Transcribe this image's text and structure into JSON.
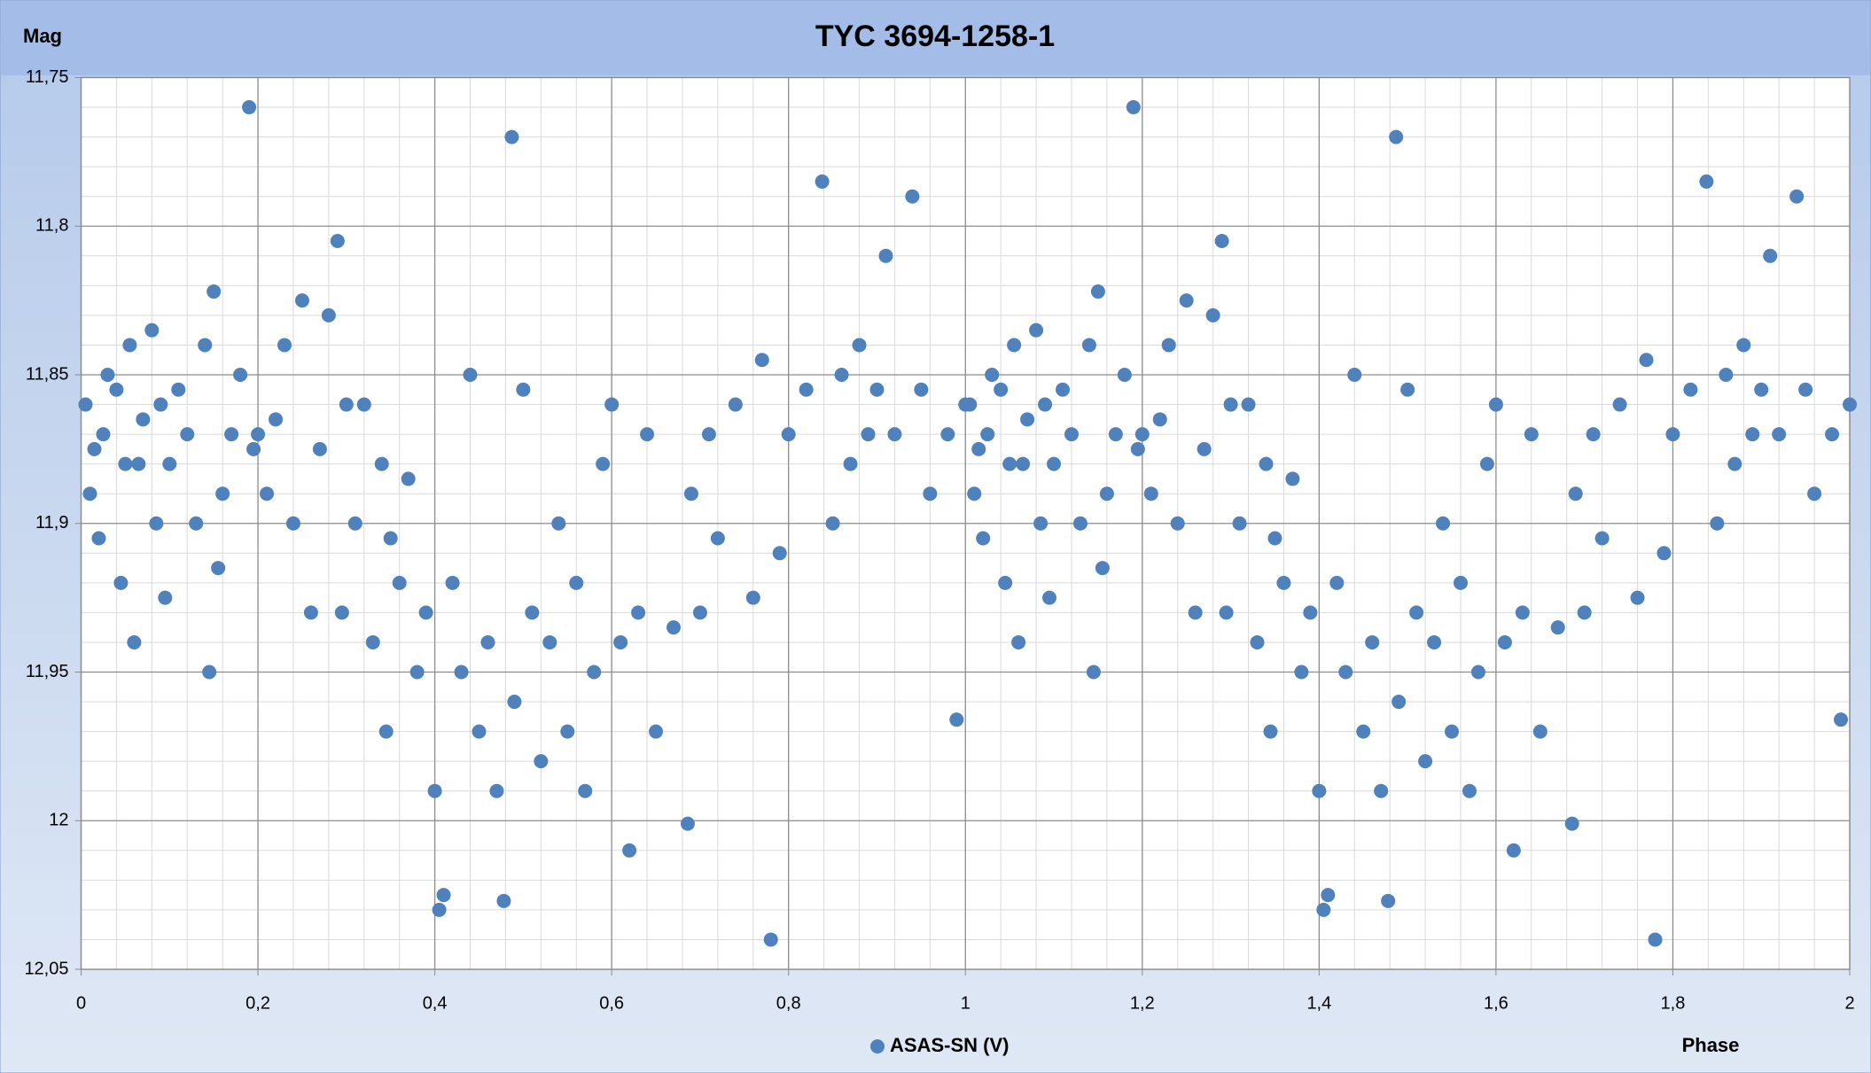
{
  "chart_data": {
    "type": "scatter",
    "title": "TYC 3694-1258-1",
    "ylabel": "Mag",
    "xlabel": "Phase",
    "xlim": [
      0,
      2
    ],
    "xticks": [
      0,
      {
        "value": 0.2,
        "label": "0,2"
      },
      {
        "value": 0.4,
        "label": "0,4"
      },
      {
        "value": 0.6,
        "label": "0,6"
      },
      {
        "value": 0.8,
        "label": "0,8"
      },
      1,
      {
        "value": 1.2,
        "label": "1,2"
      },
      {
        "value": 1.4,
        "label": "1,4"
      },
      {
        "value": 1.6,
        "label": "1,6"
      },
      {
        "value": 1.8,
        "label": "1,8"
      },
      2
    ],
    "ylim": [
      11.75,
      12.05
    ],
    "yinverted": true,
    "yticks": [
      {
        "value": 11.75,
        "label": "11,75"
      },
      {
        "value": 11.8,
        "label": "11,8"
      },
      {
        "value": 11.85,
        "label": "11,85"
      },
      {
        "value": 11.9,
        "label": "11,9"
      },
      {
        "value": 11.95,
        "label": "11,95"
      },
      12,
      {
        "value": 12.05,
        "label": "12,05"
      }
    ],
    "grid": true,
    "minor_grid": true,
    "legend": "bottom",
    "series": [
      {
        "name": "ASAS-SN (V)",
        "color": "#4f81bd",
        "x": [
          0.005,
          0.01,
          0.015,
          0.02,
          0.025,
          0.03,
          0.04,
          0.045,
          0.05,
          0.055,
          0.06,
          0.065,
          0.07,
          0.08,
          0.085,
          0.09,
          0.095,
          0.1,
          0.11,
          0.12,
          0.13,
          0.14,
          0.145,
          0.15,
          0.155,
          0.16,
          0.17,
          0.18,
          0.19,
          0.195,
          0.2,
          0.21,
          0.22,
          0.23,
          0.24,
          0.25,
          0.26,
          0.27,
          0.28,
          0.29,
          0.295,
          0.3,
          0.31,
          0.32,
          0.33,
          0.34,
          0.345,
          0.35,
          0.36,
          0.37,
          0.38,
          0.39,
          0.4,
          0.405,
          0.41,
          0.42,
          0.43,
          0.44,
          0.45,
          0.46,
          0.47,
          0.478,
          0.487,
          0.49,
          0.5,
          0.51,
          0.52,
          0.53,
          0.54,
          0.55,
          0.56,
          0.57,
          0.58,
          0.59,
          0.6,
          0.61,
          0.62,
          0.63,
          0.64,
          0.65,
          0.67,
          0.686,
          0.69,
          0.7,
          0.71,
          0.72,
          0.74,
          0.76,
          0.77,
          0.78,
          0.79,
          0.8,
          0.82,
          0.838,
          0.85,
          0.86,
          0.87,
          0.88,
          0.89,
          0.9,
          0.91,
          0.92,
          0.94,
          0.95,
          0.96,
          0.98,
          0.99,
          1.0,
          1.005,
          1.01,
          1.015,
          1.02,
          1.025,
          1.03,
          1.04,
          1.045,
          1.05,
          1.055,
          1.06,
          1.065,
          1.07,
          1.08,
          1.085,
          1.09,
          1.095,
          1.1,
          1.11,
          1.12,
          1.13,
          1.14,
          1.145,
          1.15,
          1.155,
          1.16,
          1.17,
          1.18,
          1.19,
          1.195,
          1.2,
          1.21,
          1.22,
          1.23,
          1.24,
          1.25,
          1.26,
          1.27,
          1.28,
          1.29,
          1.295,
          1.3,
          1.31,
          1.32,
          1.33,
          1.34,
          1.345,
          1.35,
          1.36,
          1.37,
          1.38,
          1.39,
          1.4,
          1.405,
          1.41,
          1.42,
          1.43,
          1.44,
          1.45,
          1.46,
          1.47,
          1.478,
          1.487,
          1.49,
          1.5,
          1.51,
          1.52,
          1.53,
          1.54,
          1.55,
          1.56,
          1.57,
          1.58,
          1.59,
          1.6,
          1.61,
          1.62,
          1.63,
          1.64,
          1.65,
          1.67,
          1.686,
          1.69,
          1.7,
          1.71,
          1.72,
          1.74,
          1.76,
          1.77,
          1.78,
          1.79,
          1.8,
          1.82,
          1.838,
          1.85,
          1.86,
          1.87,
          1.88,
          1.89,
          1.9,
          1.91,
          1.92,
          1.94,
          1.95,
          1.96,
          1.98,
          1.99,
          2.0
        ],
        "y": [
          11.86,
          11.89,
          11.875,
          11.905,
          11.87,
          11.85,
          11.855,
          11.92,
          11.88,
          11.84,
          11.94,
          11.88,
          11.865,
          11.835,
          11.9,
          11.86,
          11.925,
          11.88,
          11.855,
          11.87,
          11.9,
          11.84,
          11.95,
          11.822,
          11.915,
          11.89,
          11.87,
          11.85,
          11.76,
          11.875,
          11.87,
          11.89,
          11.865,
          11.84,
          11.9,
          11.825,
          11.93,
          11.875,
          11.83,
          11.805,
          11.93,
          11.86,
          11.9,
          11.86,
          11.94,
          11.88,
          11.97,
          11.905,
          11.92,
          11.885,
          11.95,
          11.93,
          11.99,
          12.03,
          12.025,
          11.92,
          11.95,
          11.85,
          11.97,
          11.94,
          11.99,
          12.027,
          11.77,
          11.96,
          11.855,
          11.93,
          11.98,
          11.94,
          11.9,
          11.97,
          11.92,
          11.99,
          11.95,
          11.88,
          11.86,
          11.94,
          12.01,
          11.93,
          11.87,
          11.97,
          11.935,
          12.001,
          11.89,
          11.93,
          11.87,
          11.905,
          11.86,
          11.925,
          11.845,
          12.04,
          11.91,
          11.87,
          11.855,
          11.785,
          11.9,
          11.85,
          11.88,
          11.84,
          11.87,
          11.855,
          11.81,
          11.87,
          11.79,
          11.855,
          11.89,
          11.87,
          11.966,
          11.86,
          11.86,
          11.89,
          11.875,
          11.905,
          11.87,
          11.85,
          11.855,
          11.92,
          11.88,
          11.84,
          11.94,
          11.88,
          11.865,
          11.835,
          11.9,
          11.86,
          11.925,
          11.88,
          11.855,
          11.87,
          11.9,
          11.84,
          11.95,
          11.822,
          11.915,
          11.89,
          11.87,
          11.85,
          11.76,
          11.875,
          11.87,
          11.89,
          11.865,
          11.84,
          11.9,
          11.825,
          11.93,
          11.875,
          11.83,
          11.805,
          11.93,
          11.86,
          11.9,
          11.86,
          11.94,
          11.88,
          11.97,
          11.905,
          11.92,
          11.885,
          11.95,
          11.93,
          11.99,
          12.03,
          12.025,
          11.92,
          11.95,
          11.85,
          11.97,
          11.94,
          11.99,
          12.027,
          11.77,
          11.96,
          11.855,
          11.93,
          11.98,
          11.94,
          11.9,
          11.97,
          11.92,
          11.99,
          11.95,
          11.88,
          11.86,
          11.94,
          12.01,
          11.93,
          11.87,
          11.97,
          11.935,
          12.001,
          11.89,
          11.93,
          11.87,
          11.905,
          11.86,
          11.925,
          11.845,
          12.04,
          11.91,
          11.87,
          11.855,
          11.785,
          11.9,
          11.85,
          11.88,
          11.84,
          11.87,
          11.855,
          11.81,
          11.87,
          11.79,
          11.855,
          11.89,
          11.87,
          11.966,
          11.86
        ]
      }
    ]
  }
}
